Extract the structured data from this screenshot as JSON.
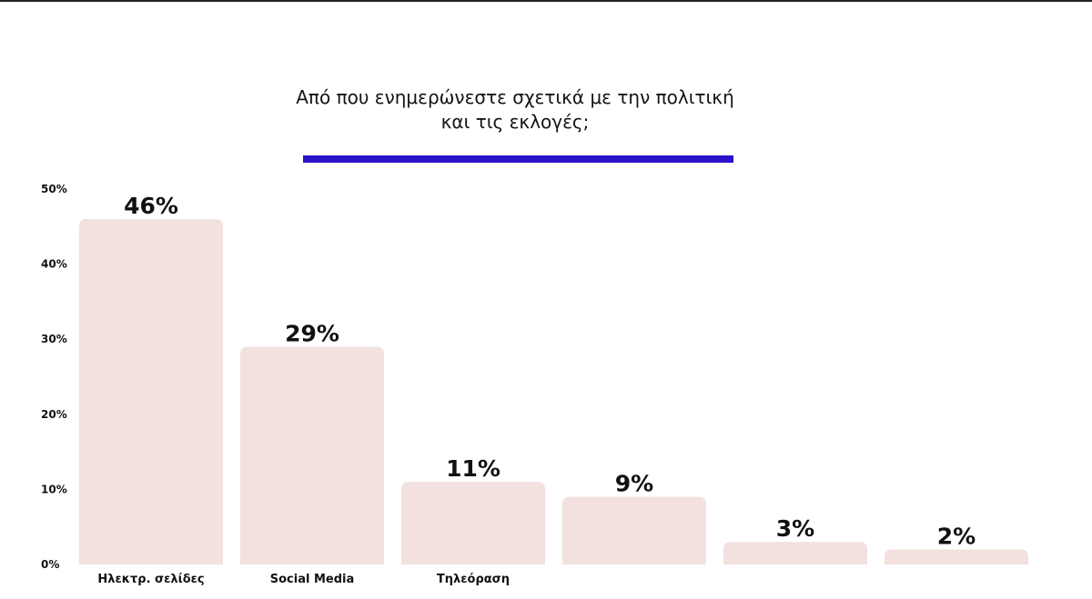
{
  "chart_data": {
    "type": "bar",
    "title_lines": [
      "Από που ενημερώνεστε σχετικά με την πολιτική",
      "και τις εκλογές;"
    ],
    "categories": [
      "Ηλεκτρ. σελίδες",
      "Social Media",
      "Τηλεόραση",
      "",
      "",
      ""
    ],
    "values": [
      46,
      29,
      11,
      9,
      3,
      2
    ],
    "value_labels": [
      "46%",
      "29%",
      "11%",
      "9%",
      "3%",
      "2%"
    ],
    "y_ticks": [
      0,
      10,
      20,
      30,
      40,
      50
    ],
    "y_tick_labels": [
      "0%",
      "10%",
      "20%",
      "30%",
      "40%",
      "50%"
    ],
    "ylim": [
      0,
      50
    ],
    "grid": false,
    "legend": "none",
    "bar_color": "#f2e1df",
    "accent_color": "#2a12c8"
  }
}
